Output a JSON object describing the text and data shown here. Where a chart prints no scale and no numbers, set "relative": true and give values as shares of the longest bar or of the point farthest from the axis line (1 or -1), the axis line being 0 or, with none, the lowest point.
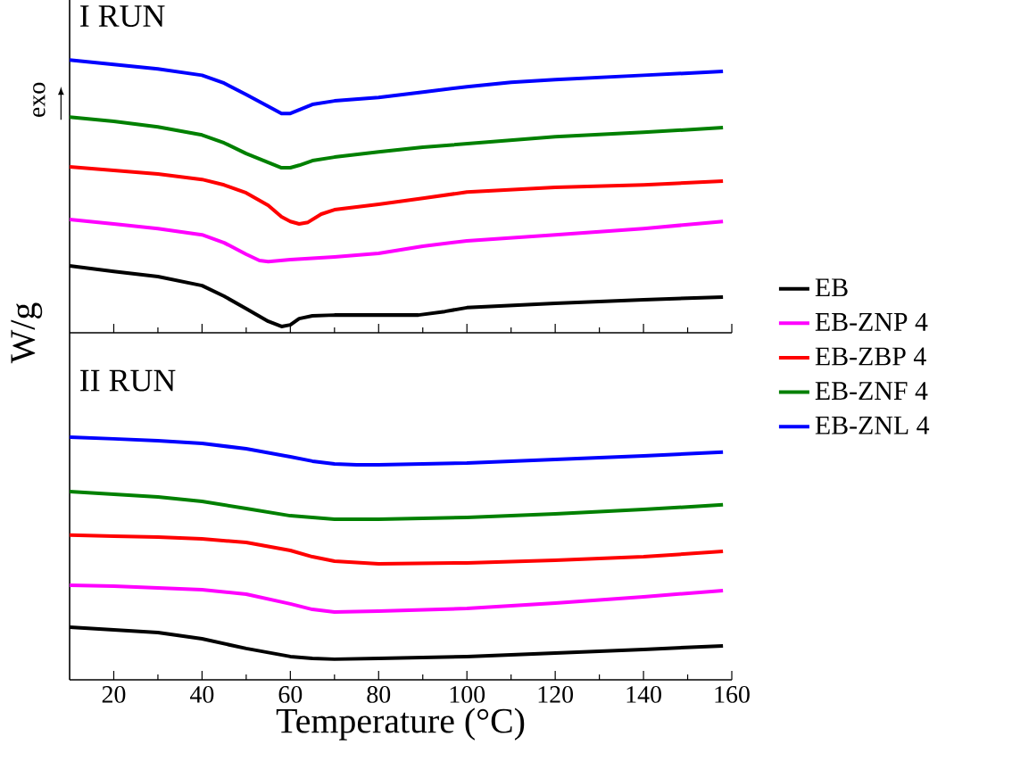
{
  "chart_data": [
    {
      "type": "line",
      "title": "I RUN",
      "ylabel": "W/g",
      "relative": true,
      "xlim": [
        10,
        160
      ],
      "xticks": [
        20,
        40,
        60,
        80,
        100,
        120,
        140,
        160
      ],
      "tick_labels": false,
      "legend": "right",
      "annotations": [
        "exo"
      ],
      "series": [
        {
          "name": "EB",
          "color": "#000000",
          "x": [
            10,
            20,
            30,
            40,
            45,
            50,
            55,
            58,
            60,
            62,
            65,
            70,
            80,
            89,
            95,
            100,
            120,
            140,
            158
          ],
          "values": [
            0.245,
            0.225,
            0.206,
            0.173,
            0.134,
            0.088,
            0.042,
            0.023,
            0.029,
            0.052,
            0.062,
            0.065,
            0.065,
            0.065,
            0.078,
            0.092,
            0.108,
            0.121,
            0.131
          ]
        },
        {
          "name": "EB-ZNP 4",
          "color": "#ff00ff",
          "x": [
            10,
            20,
            30,
            40,
            45,
            50,
            53,
            55,
            60,
            70,
            80,
            90,
            100,
            120,
            140,
            158
          ],
          "values": [
            0.415,
            0.399,
            0.382,
            0.359,
            0.33,
            0.288,
            0.265,
            0.261,
            0.268,
            0.278,
            0.291,
            0.317,
            0.337,
            0.359,
            0.382,
            0.408
          ]
        },
        {
          "name": "EB-ZBP 4",
          "color": "#ff0000",
          "x": [
            10,
            20,
            30,
            40,
            45,
            50,
            55,
            58,
            60,
            62,
            64,
            67,
            70,
            80,
            90,
            100,
            120,
            140,
            158
          ],
          "values": [
            0.608,
            0.595,
            0.582,
            0.562,
            0.542,
            0.513,
            0.467,
            0.425,
            0.408,
            0.399,
            0.405,
            0.435,
            0.451,
            0.471,
            0.493,
            0.516,
            0.533,
            0.542,
            0.556
          ]
        },
        {
          "name": "EB-ZNF 4",
          "color": "#008000",
          "x": [
            10,
            20,
            30,
            40,
            45,
            50,
            55,
            58,
            60,
            62,
            65,
            70,
            80,
            90,
            100,
            120,
            140,
            158
          ],
          "values": [
            0.791,
            0.775,
            0.755,
            0.725,
            0.696,
            0.657,
            0.624,
            0.605,
            0.605,
            0.614,
            0.631,
            0.644,
            0.663,
            0.68,
            0.693,
            0.719,
            0.735,
            0.752
          ]
        },
        {
          "name": "EB-ZNL 4",
          "color": "#0000ff",
          "x": [
            10,
            20,
            30,
            40,
            45,
            50,
            55,
            58,
            60,
            62,
            65,
            70,
            80,
            90,
            100,
            110,
            120,
            140,
            158
          ],
          "values": [
            1.0,
            0.984,
            0.967,
            0.944,
            0.915,
            0.873,
            0.83,
            0.804,
            0.804,
            0.817,
            0.837,
            0.85,
            0.863,
            0.882,
            0.902,
            0.918,
            0.928,
            0.944,
            0.958
          ]
        }
      ]
    },
    {
      "type": "line",
      "title": "II RUN",
      "xlabel": "Temperature (°C)",
      "relative": true,
      "xlim": [
        10,
        160
      ],
      "xticks": [
        20,
        40,
        60,
        80,
        100,
        120,
        140,
        160
      ],
      "tick_labels": "x",
      "series": [
        {
          "color": "#000000",
          "x": [
            10,
            20,
            30,
            40,
            50,
            60,
            65,
            70,
            80,
            100,
            120,
            140,
            158
          ],
          "values": [
            0.217,
            0.206,
            0.195,
            0.169,
            0.129,
            0.096,
            0.088,
            0.085,
            0.088,
            0.096,
            0.11,
            0.125,
            0.14
          ]
        },
        {
          "color": "#ff00ff",
          "x": [
            10,
            20,
            30,
            40,
            50,
            60,
            65,
            70,
            80,
            100,
            120,
            140,
            158
          ],
          "values": [
            0.39,
            0.386,
            0.379,
            0.371,
            0.353,
            0.313,
            0.29,
            0.279,
            0.283,
            0.294,
            0.316,
            0.342,
            0.368
          ]
        },
        {
          "color": "#ff0000",
          "x": [
            10,
            20,
            30,
            40,
            50,
            60,
            65,
            70,
            80,
            100,
            120,
            140,
            158
          ],
          "values": [
            0.596,
            0.592,
            0.588,
            0.581,
            0.566,
            0.533,
            0.507,
            0.489,
            0.478,
            0.482,
            0.493,
            0.507,
            0.529
          ]
        },
        {
          "color": "#008000",
          "x": [
            10,
            20,
            30,
            40,
            50,
            60,
            70,
            80,
            90,
            100,
            120,
            140,
            158
          ],
          "values": [
            0.776,
            0.765,
            0.754,
            0.735,
            0.706,
            0.676,
            0.662,
            0.662,
            0.665,
            0.669,
            0.684,
            0.702,
            0.721
          ]
        },
        {
          "color": "#0000ff",
          "x": [
            10,
            20,
            30,
            40,
            50,
            60,
            65,
            70,
            75,
            80,
            90,
            100,
            120,
            140,
            158
          ],
          "values": [
            1.0,
            0.993,
            0.985,
            0.974,
            0.952,
            0.919,
            0.901,
            0.89,
            0.886,
            0.886,
            0.89,
            0.893,
            0.908,
            0.923,
            0.938
          ]
        }
      ]
    }
  ]
}
